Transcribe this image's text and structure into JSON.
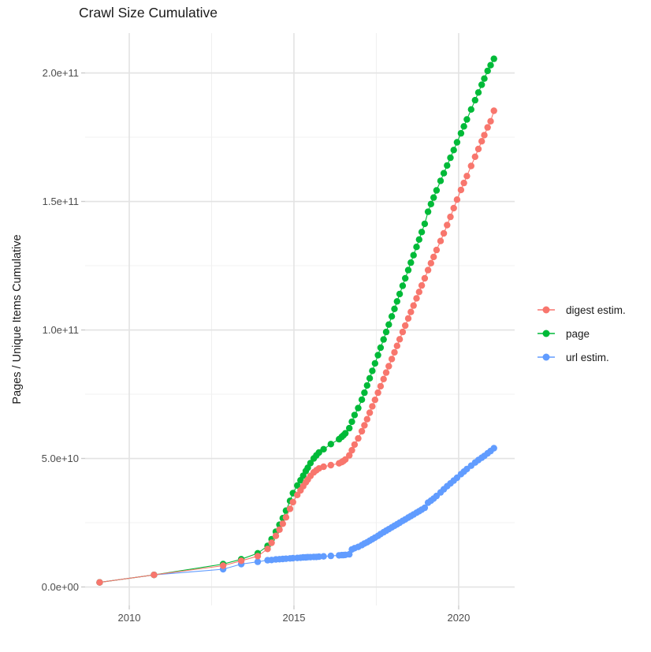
{
  "page": {
    "title": "Crawl Size Cumulative"
  },
  "chart_data": {
    "type": "scatter",
    "title": "Crawl Size Cumulative",
    "xlabel": "",
    "ylabel": "Pages / Unique Items Cumulative",
    "legend_position": "right",
    "grid": true,
    "background": "#ffffff",
    "grid_major_color": "#e3e3e3",
    "grid_minor_color": "#f0f0f0",
    "tick_color": "#cccccc",
    "axis_text_color": "#4d4d4d",
    "y_unit": 1000000000,
    "xlim": [
      2008.66,
      2021.7
    ],
    "ylim_e9": [
      -7.2,
      215.5
    ],
    "x_major_ticks": [
      {
        "value": 2010,
        "label": "2010"
      },
      {
        "value": 2015,
        "label": "2015"
      },
      {
        "value": 2020,
        "label": "2020"
      }
    ],
    "x_minor_ticks": [
      2012.5,
      2017.5
    ],
    "y_major_ticks": [
      {
        "value_e9": 0,
        "label": "0.0e+00"
      },
      {
        "value_e9": 50,
        "label": "5.0e+10"
      },
      {
        "value_e9": 100,
        "label": "1.0e+11"
      },
      {
        "value_e9": 150,
        "label": "1.5e+11"
      },
      {
        "value_e9": 200,
        "label": "2.0e+11"
      }
    ],
    "y_minor_ticks_e9": [
      25,
      75,
      125,
      175
    ],
    "x": [
      2009.1,
      2010.75,
      2012.85,
      2013.4,
      2013.9,
      2014.2,
      2014.32,
      2014.45,
      2014.56,
      2014.66,
      2014.76,
      2014.88,
      2014.97,
      2015.1,
      2015.2,
      2015.28,
      2015.36,
      2015.42,
      2015.5,
      2015.6,
      2015.68,
      2015.76,
      2015.9,
      2016.12,
      2016.37,
      2016.45,
      2016.5,
      2016.56,
      2016.68,
      2016.76,
      2016.84,
      2016.95,
      2017.06,
      2017.14,
      2017.22,
      2017.3,
      2017.38,
      2017.46,
      2017.55,
      2017.63,
      2017.72,
      2017.8,
      2017.88,
      2017.97,
      2018.05,
      2018.13,
      2018.21,
      2018.3,
      2018.38,
      2018.47,
      2018.55,
      2018.63,
      2018.72,
      2018.8,
      2018.88,
      2018.97,
      2019.07,
      2019.16,
      2019.24,
      2019.33,
      2019.45,
      2019.55,
      2019.65,
      2019.75,
      2019.85,
      2019.95,
      2020.07,
      2020.16,
      2020.25,
      2020.38,
      2020.5,
      2020.6,
      2020.7,
      2020.78,
      2020.88,
      2020.97,
      2021.07
    ],
    "series": [
      {
        "name": "digest estim.",
        "color": "#F8766D",
        "values_e9": [
          1.8,
          4.7,
          8.3,
          10.2,
          12.0,
          14.8,
          17.2,
          19.9,
          22.3,
          24.6,
          27.1,
          30.4,
          33.0,
          35.8,
          37.6,
          39.2,
          40.7,
          41.8,
          43.2,
          44.6,
          45.4,
          46.1,
          46.8,
          47.4,
          48.1,
          48.6,
          49.0,
          49.6,
          51.2,
          53.2,
          55.4,
          57.8,
          60.6,
          62.9,
          65.3,
          67.8,
          70.3,
          72.8,
          75.6,
          78.1,
          80.9,
          83.4,
          85.9,
          88.7,
          91.3,
          93.8,
          96.4,
          99.2,
          101.7,
          104.5,
          107.0,
          109.5,
          112.3,
          114.8,
          117.3,
          120.1,
          123.3,
          126.0,
          128.4,
          131.1,
          134.6,
          137.6,
          140.8,
          144.0,
          147.4,
          150.7,
          154.5,
          157.2,
          159.9,
          163.8,
          167.4,
          170.4,
          173.4,
          175.8,
          178.8,
          181.2,
          185.3
        ]
      },
      {
        "name": "page",
        "color": "#00BA38",
        "values_e9": [
          1.8,
          4.7,
          8.9,
          10.8,
          13.1,
          16.0,
          18.6,
          21.5,
          24.2,
          26.8,
          29.7,
          33.5,
          36.5,
          39.5,
          41.5,
          43.3,
          45.1,
          46.4,
          48.2,
          50.0,
          51.2,
          52.3,
          53.6,
          55.6,
          57.5,
          58.4,
          59.0,
          59.8,
          61.8,
          64.3,
          66.9,
          69.6,
          72.9,
          75.6,
          78.4,
          81.2,
          84.1,
          87.0,
          90.2,
          93.1,
          96.3,
          99.2,
          102.1,
          105.3,
          108.2,
          111.1,
          114.0,
          117.2,
          120.1,
          123.3,
          126.2,
          129.1,
          132.3,
          135.2,
          138.1,
          141.3,
          146.0,
          149.0,
          151.5,
          154.3,
          158.0,
          161.0,
          164.0,
          167.0,
          170.0,
          173.0,
          176.5,
          179.2,
          181.9,
          185.8,
          189.4,
          192.4,
          195.4,
          197.8,
          200.8,
          203.0,
          205.5
        ]
      },
      {
        "name": "url estim.",
        "color": "#619CFF",
        "values_e9": [
          1.8,
          4.7,
          6.9,
          8.9,
          9.8,
          10.4,
          10.5,
          10.7,
          10.8,
          10.9,
          11.0,
          11.1,
          11.2,
          11.3,
          11.4,
          11.5,
          11.5,
          11.6,
          11.6,
          11.7,
          11.7,
          11.8,
          11.9,
          12.1,
          12.3,
          12.4,
          12.4,
          12.5,
          12.7,
          14.6,
          15.1,
          15.6,
          16.3,
          16.9,
          17.4,
          18.0,
          18.6,
          19.2,
          19.9,
          20.6,
          21.3,
          21.9,
          22.5,
          23.2,
          23.8,
          24.4,
          25.0,
          25.7,
          26.3,
          27.0,
          27.6,
          28.2,
          28.9,
          29.5,
          30.1,
          30.8,
          32.8,
          33.6,
          34.4,
          35.4,
          36.8,
          38.0,
          39.2,
          40.3,
          41.4,
          42.5,
          43.9,
          44.9,
          45.9,
          47.2,
          48.4,
          49.4,
          50.3,
          51.0,
          52.0,
          52.9,
          54.0
        ]
      }
    ],
    "draw_order": [
      "url estim.",
      "page",
      "digest estim."
    ]
  }
}
